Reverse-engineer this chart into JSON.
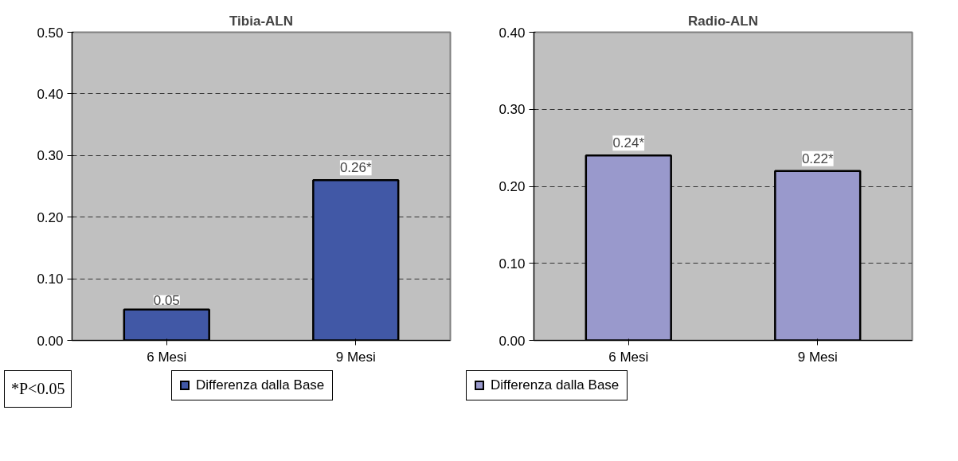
{
  "chart_data": [
    {
      "type": "bar",
      "title": "Tibia-ALN",
      "categories": [
        "6 Mesi",
        "9 Mesi"
      ],
      "series": [
        {
          "name": "Differenza dalla Base",
          "color": "#4158a6",
          "values": [
            0.05,
            0.26
          ]
        }
      ],
      "value_labels": [
        "0.05",
        "0.26*"
      ],
      "ylim": [
        0,
        0.5
      ],
      "yticks": [
        {
          "value": 0,
          "label": "0.00"
        },
        {
          "value": 0.1,
          "label": "0.10"
        },
        {
          "value": 0.2,
          "label": "0.20"
        },
        {
          "value": 0.3,
          "label": "0.30"
        },
        {
          "value": 0.4,
          "label": "0.40"
        },
        {
          "value": 0.5,
          "label": "0.50"
        }
      ],
      "grid": "y",
      "legend": "bottom",
      "annotations": [
        "*P<0.05"
      ]
    },
    {
      "type": "bar",
      "title": "Radio-ALN",
      "categories": [
        "6 Mesi",
        "9 Mesi"
      ],
      "series": [
        {
          "name": "Differenza dalla Base",
          "color": "#9999cc",
          "values": [
            0.24,
            0.22
          ]
        }
      ],
      "value_labels": [
        "0.24*",
        "0.22*"
      ],
      "ylim": [
        0,
        0.4
      ],
      "yticks": [
        {
          "value": 0,
          "label": "0.00"
        },
        {
          "value": 0.1,
          "label": "0.10"
        },
        {
          "value": 0.2,
          "label": "0.20"
        },
        {
          "value": 0.3,
          "label": "0.30"
        },
        {
          "value": 0.4,
          "label": "0.40"
        }
      ],
      "grid": "y",
      "legend": "bottom"
    }
  ]
}
